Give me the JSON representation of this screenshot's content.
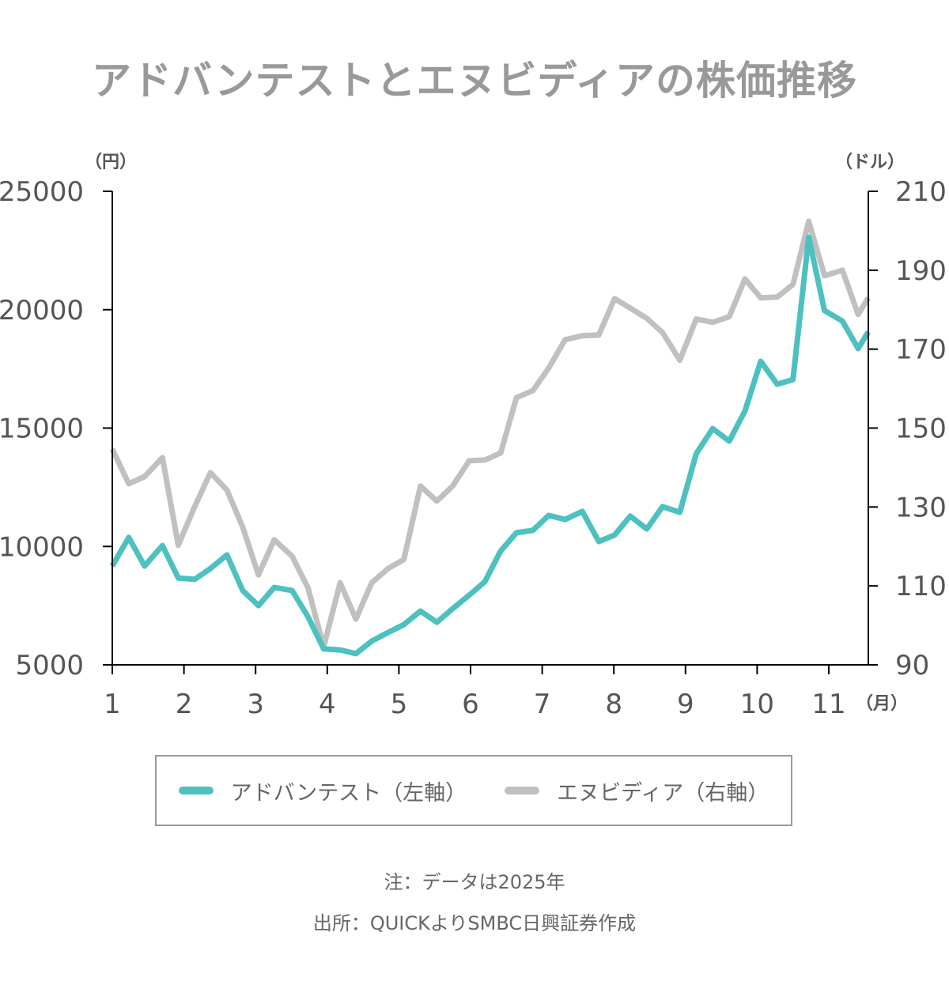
{
  "chart_data": {
    "type": "line",
    "title": "アドバンテストとエヌビディアの株価推移",
    "xlabel": "（月）",
    "ylabel_left": "（円）",
    "ylabel_right": "（ドル）",
    "x_ticks": [
      "1",
      "2",
      "3",
      "4",
      "5",
      "6",
      "7",
      "8",
      "9",
      "10",
      "11"
    ],
    "xlim": [
      1,
      11.55
    ],
    "ylim_left": [
      5000,
      25000
    ],
    "ylim_right": [
      90,
      210
    ],
    "y_ticks_left": [
      "5000",
      "10000",
      "15000",
      "20000",
      "25000"
    ],
    "y_ticks_right": [
      "90",
      "110",
      "130",
      "150",
      "170",
      "190",
      "210"
    ],
    "x": [
      1,
      1.23,
      1.45,
      1.7,
      1.92,
      2.15,
      2.37,
      2.6,
      2.82,
      3.04,
      3.26,
      3.51,
      3.73,
      3.95,
      4.18,
      4.4,
      4.62,
      4.85,
      5.07,
      5.3,
      5.53,
      5.75,
      5.98,
      6.2,
      6.42,
      6.64,
      6.87,
      7.09,
      7.32,
      7.56,
      7.79,
      8.01,
      8.23,
      8.46,
      8.68,
      8.92,
      9.15,
      9.38,
      9.61,
      9.83,
      10.05,
      10.28,
      10.5,
      10.72,
      10.94,
      11.19,
      11.41,
      11.55
    ],
    "series": [
      {
        "name": "アドバンテスト（左軸）",
        "axis": "left",
        "color": "#4dc0c0",
        "values": [
          9170,
          10380,
          9170,
          10040,
          8670,
          8610,
          9070,
          9640,
          8140,
          7500,
          8270,
          8140,
          7040,
          5670,
          5630,
          5470,
          6000,
          6370,
          6700,
          7270,
          6800,
          7370,
          7940,
          8510,
          9810,
          10580,
          10680,
          11310,
          11140,
          11480,
          10210,
          10480,
          11280,
          10740,
          11680,
          11440,
          13920,
          14980,
          14450,
          15720,
          17820,
          16850,
          17050,
          23060,
          19960,
          19520,
          18360,
          19060
        ]
      },
      {
        "name": "エヌビディア（右軸）",
        "axis": "right",
        "color": "#c0c0c0",
        "values": [
          144.7,
          135.9,
          137.7,
          142.5,
          120.3,
          130.1,
          138.7,
          134.3,
          124.9,
          112.8,
          121.7,
          117.5,
          109.6,
          94.6,
          110.8,
          101.6,
          110.8,
          114.4,
          116.7,
          135.3,
          131.5,
          135.3,
          141.7,
          141.9,
          143.7,
          157.7,
          159.5,
          165.2,
          172.4,
          173.4,
          173.6,
          182.8,
          180.4,
          177.8,
          174.2,
          167.2,
          177.6,
          176.8,
          178.2,
          187.8,
          183.0,
          183.2,
          186.4,
          202.4,
          188.6,
          190.0,
          178.8,
          183.0
        ]
      }
    ],
    "legend": "bottom",
    "notes": [
      "注：データは2025年",
      "出所：QUICKよりSMBC日興証券作成"
    ]
  }
}
